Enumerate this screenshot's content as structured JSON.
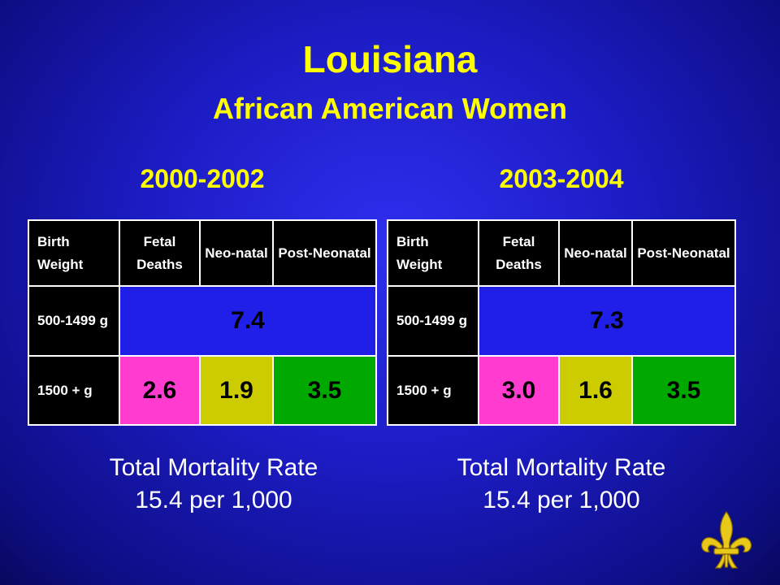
{
  "slide": {
    "title": "Louisiana",
    "subtitle": "African American Women"
  },
  "headers": [
    "Birth Weight",
    "Fetal Deaths",
    "Neo-natal",
    "Post-Neonatal"
  ],
  "row_labels": [
    "500-1499 g",
    "1500 + g"
  ],
  "panels": [
    {
      "period": "2000-2002",
      "row1_combined": "7.4",
      "row2": [
        "2.6",
        "1.9",
        "3.5"
      ],
      "total_label": "Total Mortality Rate",
      "total_value": "15.4 per 1,000"
    },
    {
      "period": "2003-2004",
      "row1_combined": "7.3",
      "row2": [
        "3.0",
        "1.6",
        "3.5"
      ],
      "total_label": "Total Mortality Rate",
      "total_value": "15.4 per 1,000"
    }
  ],
  "colors": {
    "title": "#ffff00",
    "combined_cell": "#1f1fe8",
    "fetal": "#ff3ccf",
    "neonatal": "#cccc00",
    "postneonatal": "#00a800",
    "header": "#000000",
    "logo_gold": "#e8c818"
  },
  "logo": {
    "icon": "fleur-de-lis-icon"
  }
}
